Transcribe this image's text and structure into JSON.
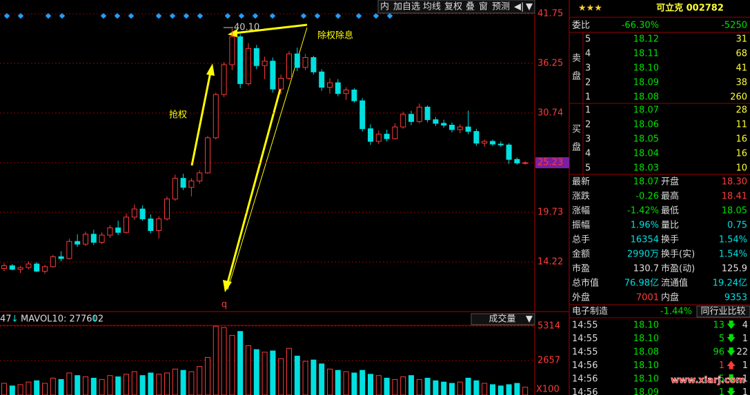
{
  "toolbar": [
    "内",
    "加自选",
    "均线",
    "复权",
    "叠",
    "窗",
    "预测"
  ],
  "kline": {
    "ylim": [
      8.87,
      43.28
    ],
    "price_ticks": [
      41.75,
      36.25,
      30.74,
      25.23,
      19.73,
      14.22
    ],
    "current_tick": 3,
    "high_label": "40.10",
    "annotation_ex": "除权除息",
    "annotation_rush": "抢权",
    "marker": "q",
    "candles": [
      [
        13.5,
        14.1,
        13.2,
        13.8
      ],
      [
        13.8,
        14.0,
        13.3,
        13.4
      ],
      [
        13.4,
        13.8,
        13.0,
        13.6
      ],
      [
        13.6,
        14.3,
        13.4,
        14.0
      ],
      [
        14.0,
        14.2,
        13.1,
        13.2
      ],
      [
        13.2,
        13.9,
        12.9,
        13.7
      ],
      [
        13.7,
        15.0,
        13.6,
        14.8
      ],
      [
        14.8,
        15.4,
        14.3,
        14.6
      ],
      [
        14.6,
        16.8,
        14.5,
        16.5
      ],
      [
        16.5,
        17.3,
        15.9,
        16.2
      ],
      [
        16.2,
        17.6,
        16.0,
        17.3
      ],
      [
        17.3,
        17.8,
        16.1,
        16.4
      ],
      [
        16.4,
        17.5,
        16.2,
        17.2
      ],
      [
        17.2,
        18.3,
        16.9,
        18.0
      ],
      [
        18.0,
        18.8,
        17.2,
        17.5
      ],
      [
        17.5,
        19.6,
        17.4,
        19.2
      ],
      [
        19.2,
        20.6,
        18.9,
        20.1
      ],
      [
        20.1,
        20.5,
        18.8,
        19.0
      ],
      [
        19.0,
        19.5,
        17.4,
        17.7
      ],
      [
        17.7,
        19.3,
        16.8,
        19.0
      ],
      [
        19.0,
        21.5,
        18.8,
        21.2
      ],
      [
        21.2,
        23.9,
        21.0,
        23.5
      ],
      [
        23.5,
        24.0,
        22.2,
        22.5
      ],
      [
        22.5,
        23.5,
        21.5,
        23.2
      ],
      [
        23.2,
        24.4,
        22.9,
        24.1
      ],
      [
        24.1,
        28.2,
        24.0,
        28.0
      ],
      [
        28.0,
        33.0,
        27.8,
        32.8
      ],
      [
        32.8,
        36.4,
        32.5,
        36.1
      ],
      [
        36.1,
        40.1,
        35.5,
        39.2
      ],
      [
        39.2,
        39.5,
        33.5,
        34.0
      ],
      [
        34.0,
        38.5,
        33.8,
        37.9
      ],
      [
        37.9,
        38.3,
        35.6,
        36.0
      ],
      [
        36.0,
        37.0,
        34.5,
        36.5
      ],
      [
        36.5,
        36.9,
        33.0,
        33.4
      ],
      [
        33.4,
        35.0,
        32.8,
        34.6
      ],
      [
        34.6,
        37.6,
        34.4,
        37.3
      ],
      [
        37.3,
        38.0,
        35.4,
        35.8
      ],
      [
        35.8,
        37.3,
        35.5,
        36.9
      ],
      [
        36.9,
        37.1,
        35.0,
        35.3
      ],
      [
        35.3,
        35.6,
        33.2,
        33.6
      ],
      [
        33.6,
        34.6,
        32.9,
        34.1
      ],
      [
        34.1,
        34.5,
        32.6,
        32.9
      ],
      [
        32.9,
        33.6,
        32.2,
        33.3
      ],
      [
        33.3,
        33.5,
        31.9,
        32.1
      ],
      [
        32.1,
        32.4,
        28.7,
        29.0
      ],
      [
        29.0,
        29.5,
        27.2,
        27.6
      ],
      [
        27.6,
        28.8,
        27.3,
        28.4
      ],
      [
        28.4,
        28.9,
        27.6,
        27.9
      ],
      [
        27.9,
        29.6,
        27.8,
        29.2
      ],
      [
        29.2,
        30.9,
        29.0,
        30.6
      ],
      [
        30.6,
        31.0,
        29.4,
        29.8
      ],
      [
        29.8,
        31.8,
        29.6,
        31.4
      ],
      [
        31.4,
        31.6,
        29.7,
        30.0
      ],
      [
        30.0,
        30.3,
        29.3,
        29.6
      ],
      [
        29.6,
        30.0,
        29.1,
        29.4
      ],
      [
        29.4,
        29.7,
        28.6,
        28.9
      ],
      [
        28.9,
        29.5,
        28.5,
        29.2
      ],
      [
        29.2,
        31.0,
        28.4,
        28.7
      ],
      [
        28.7,
        29.0,
        27.1,
        27.4
      ],
      [
        27.4,
        27.8,
        27.0,
        27.6
      ],
      [
        27.6,
        27.8,
        27.1,
        27.3
      ],
      [
        27.3,
        27.6,
        27.0,
        27.2
      ],
      [
        27.2,
        27.4,
        25.1,
        25.6
      ],
      [
        25.6,
        25.8,
        25.0,
        25.2
      ],
      [
        25.2,
        25.4,
        25.0,
        25.23
      ]
    ]
  },
  "volume": {
    "ylim": [
      0,
      5314
    ],
    "ticks": [
      5314,
      2657
    ],
    "unit": "X100",
    "legend_left": "47",
    "mavol": "MAVOL10: 277602",
    "selector": "成交量",
    "values": [
      900,
      700,
      800,
      1000,
      1100,
      900,
      1300,
      1200,
      1700,
      1500,
      1400,
      1300,
      1200,
      1500,
      1400,
      1600,
      1800,
      1500,
      1700,
      1600,
      1700,
      2000,
      1900,
      1800,
      2200,
      2900,
      5300,
      5200,
      4600,
      4900,
      3800,
      3500,
      3300,
      3400,
      2800,
      3600,
      3000,
      2600,
      2700,
      2400,
      2000,
      1900,
      1800,
      1700,
      1900,
      1600,
      1500,
      1300,
      1200,
      1400,
      1500,
      1200,
      1300,
      1100,
      1000,
      900,
      1000,
      1300,
      1100,
      900,
      800,
      700,
      800,
      900,
      600
    ]
  },
  "quote": {
    "stars": "★★★",
    "name": "可立克 002782",
    "weibi": [
      "委比",
      "-66.30%",
      "-5250"
    ],
    "sell_label": [
      "卖",
      "盘"
    ],
    "sell": [
      [
        "5",
        "18.12",
        "31"
      ],
      [
        "4",
        "18.11",
        "68"
      ],
      [
        "3",
        "18.10",
        "41"
      ],
      [
        "2",
        "18.09",
        "38"
      ],
      [
        "1",
        "18.08",
        "260"
      ]
    ],
    "buy_label": [
      "买",
      "盘"
    ],
    "buy": [
      [
        "1",
        "18.07",
        "28"
      ],
      [
        "2",
        "18.06",
        "11"
      ],
      [
        "3",
        "18.05",
        "16"
      ],
      [
        "4",
        "18.04",
        "16"
      ],
      [
        "5",
        "18.03",
        "10"
      ]
    ],
    "stats": [
      [
        "最新",
        "18.07",
        "开盘",
        "18.30"
      ],
      [
        "涨跌",
        "-0.26",
        "最高",
        "18.41"
      ],
      [
        "涨幅",
        "-1.42%",
        "最低",
        "18.05"
      ],
      [
        "振幅",
        "1.96%",
        "量比",
        "0.75"
      ],
      [
        "总手",
        "16354",
        "换手",
        "1.54%"
      ],
      [
        "金额",
        "2990万",
        "换手(实)",
        "1.54%"
      ],
      [
        "市盈",
        "130.7",
        "市盈(动)",
        "125.9"
      ],
      [
        "总市值",
        "76.98亿",
        "流通值",
        "19.24亿"
      ],
      [
        "外盘",
        "7001",
        "内盘",
        "9353"
      ]
    ],
    "stat_colors": [
      [
        "#ff3a3a",
        "#00e000",
        "#ff3a3a",
        "#ff3a3a"
      ],
      [
        "#ff3a3a",
        "#00e000",
        "#ff3a3a",
        "#ff3a3a"
      ],
      [
        "#ff3a3a",
        "#00e000",
        "#ff3a3a",
        "#00e000"
      ],
      [
        "#ff3a3a",
        "#00e0e0",
        "#ff3a3a",
        "#00e0e0"
      ],
      [
        "#ff3a3a",
        "#00e0e0",
        "#ff3a3a",
        "#00e0e0"
      ],
      [
        "#ff3a3a",
        "#00e0e0",
        "#ff3a3a",
        "#00e0e0"
      ],
      [
        "#ff3a3a",
        "#e0e0e0",
        "#ff3a3a",
        "#e0e0e0"
      ],
      [
        "#ff3a3a",
        "#00e0e0",
        "#ff3a3a",
        "#00e0e0"
      ],
      [
        "#ff3a3a",
        "#ff3a3a",
        "#ff3a3a",
        "#00e0e0"
      ]
    ],
    "industry": [
      "电子制造",
      "-1.44%",
      "同行业比较"
    ],
    "ticks": [
      [
        "14:55",
        "18.10",
        "13",
        "down",
        "4"
      ],
      [
        "14:55",
        "18.10",
        "5",
        "down",
        "1"
      ],
      [
        "14:55",
        "18.08",
        "96",
        "down",
        "22"
      ],
      [
        "14:56",
        "18.10",
        "1",
        "up",
        "1"
      ],
      [
        "14:56",
        "18.10",
        "5",
        "down",
        "1"
      ],
      [
        "14:56",
        "18.09",
        "1",
        "down",
        "1"
      ]
    ]
  },
  "watermark": "www.xiarj.com"
}
